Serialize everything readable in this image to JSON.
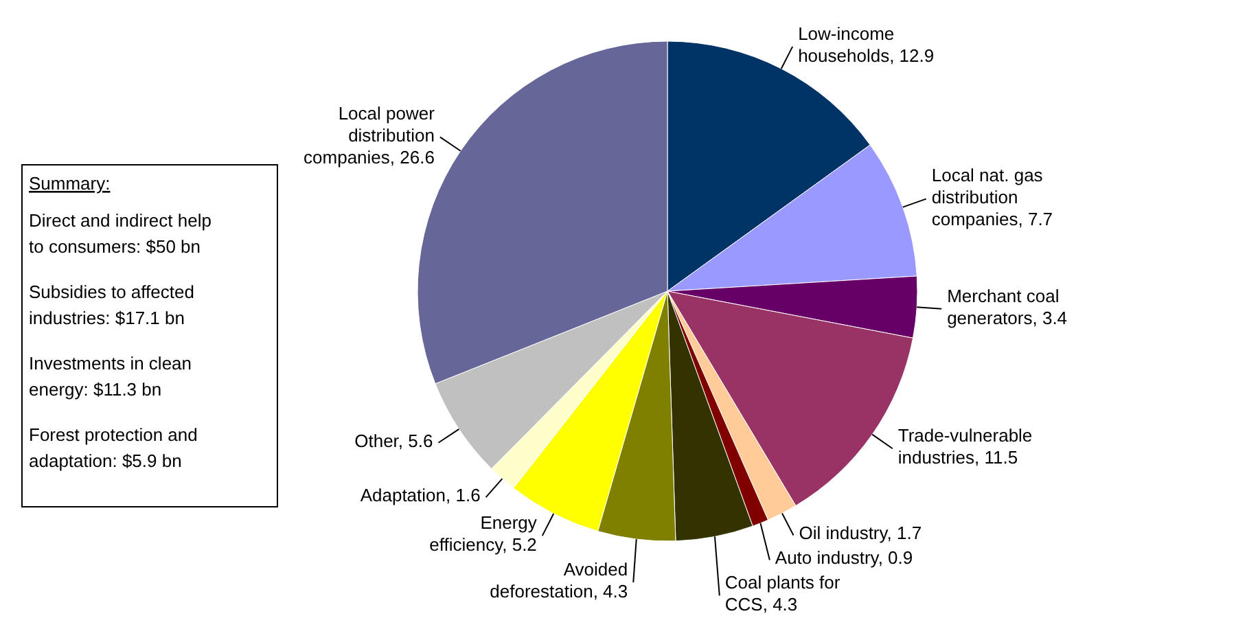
{
  "chart_data": {
    "type": "pie",
    "categories": [
      "Low-income households",
      "Local nat. gas distribution companies",
      "Merchant coal generators",
      "Trade-vulnerable industries",
      "Oil industry",
      "Auto industry",
      "Coal plants for CCS",
      "Avoided deforestation",
      "Energy efficiency",
      "Adaptation",
      "Other",
      "Local power distribution companies"
    ],
    "values": [
      12.9,
      7.7,
      3.4,
      11.5,
      1.7,
      0.9,
      4.3,
      4.3,
      5.2,
      1.6,
      5.6,
      26.6
    ],
    "colors": [
      "#003366",
      "#9999ff",
      "#660066",
      "#993366",
      "#ffcc99",
      "#800000",
      "#333300",
      "#808000",
      "#ffff00",
      "#ffffcc",
      "#c0c0c0",
      "#666699"
    ],
    "value_labels": [
      ", 12.9",
      ", 7.7",
      ", 3.4",
      ", 11.5",
      ", 1.7",
      ", 0.9",
      ", 4.3",
      ", 4.3",
      ", 5.2",
      ", 1.6",
      ", 5.6",
      ", 26.6"
    ],
    "annotations": [
      "Summary:",
      "Direct and indirect help to consumers: $50 bn",
      "Subsidies to affected industries: $17.1 bn",
      "Investments in clean energy: $11.3 bn",
      "Forest protection and adaptation: $5.9 bn"
    ]
  }
}
